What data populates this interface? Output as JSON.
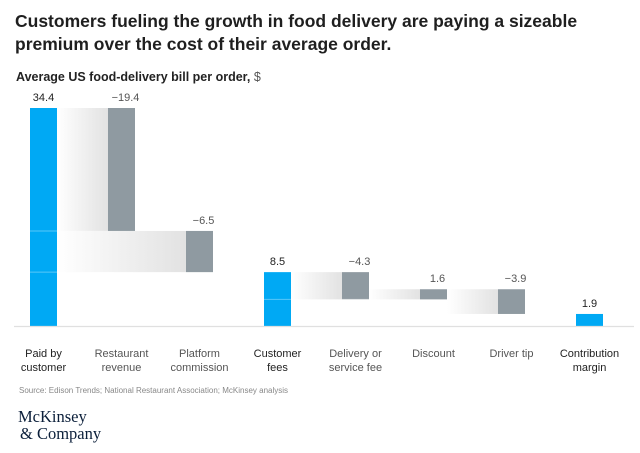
{
  "title": "Customers fueling the growth in food delivery are paying a sizeable premium over the cost of their average order.",
  "subtitle": "Average US food-delivery bill per order,",
  "subtitle_unit": "$",
  "source": "Source: Edison Trends; National Restaurant Association; McKinsey analysis",
  "logo": {
    "line1": "McKinsey",
    "line2": "& Company"
  },
  "colors": {
    "total": "#00a9f4",
    "change": "#8f9aa1",
    "connector": "#e3e3e3",
    "baseline": "#e0e0e0"
  },
  "chart_data": {
    "type": "bar",
    "subtype": "waterfall",
    "title": "Customers fueling the growth in food delivery are paying a sizeable premium over the cost of their average order.",
    "ylabel": "Average US food-delivery bill per order, $",
    "xlabel": "",
    "ylim": [
      0,
      34.4
    ],
    "grid": false,
    "categories": [
      "Paid by customer",
      "Restaurant revenue",
      "Platform commission",
      "Customer fees",
      "Delivery or service fee",
      "Discount",
      "Driver tip",
      "Contribution margin"
    ],
    "category_lines": [
      [
        "Paid by",
        "customer"
      ],
      [
        "Restaurant",
        "revenue"
      ],
      [
        "Platform",
        "commission"
      ],
      [
        "Customer",
        "fees"
      ],
      [
        "Delivery or",
        "service fee"
      ],
      [
        "Discount"
      ],
      [
        "Driver tip"
      ],
      [
        "Contribution",
        "margin"
      ]
    ],
    "category_bold": [
      true,
      false,
      false,
      true,
      false,
      false,
      false,
      true
    ],
    "labels": [
      "34.4",
      "−19.4",
      "−6.5",
      "8.5",
      "−4.3",
      "1.6",
      "−3.9",
      "1.9"
    ],
    "bars": [
      {
        "kind": "total",
        "start": 0,
        "end": 34.4
      },
      {
        "kind": "change",
        "start": 34.4,
        "end": 15.0
      },
      {
        "kind": "change",
        "start": 15.0,
        "end": 8.5
      },
      {
        "kind": "total",
        "start": 0,
        "end": 8.5
      },
      {
        "kind": "change",
        "start": 8.5,
        "end": 4.2
      },
      {
        "kind": "change",
        "start": 4.2,
        "end": 5.8
      },
      {
        "kind": "change",
        "start": 5.8,
        "end": 1.9
      },
      {
        "kind": "total",
        "start": 0,
        "end": 1.9
      }
    ],
    "connectors": [
      {
        "from": 0,
        "to": 1,
        "low": 15.0,
        "high": 34.4
      },
      {
        "from": 0,
        "to": 2,
        "low": 8.5,
        "high": 15.0
      },
      {
        "from": 3,
        "to": 4,
        "low": 4.2,
        "high": 8.5
      },
      {
        "from": 4,
        "to": 5,
        "low": 4.2,
        "high": 5.8
      },
      {
        "from": 5,
        "to": 6,
        "low": 1.9,
        "high": 5.8
      }
    ]
  }
}
